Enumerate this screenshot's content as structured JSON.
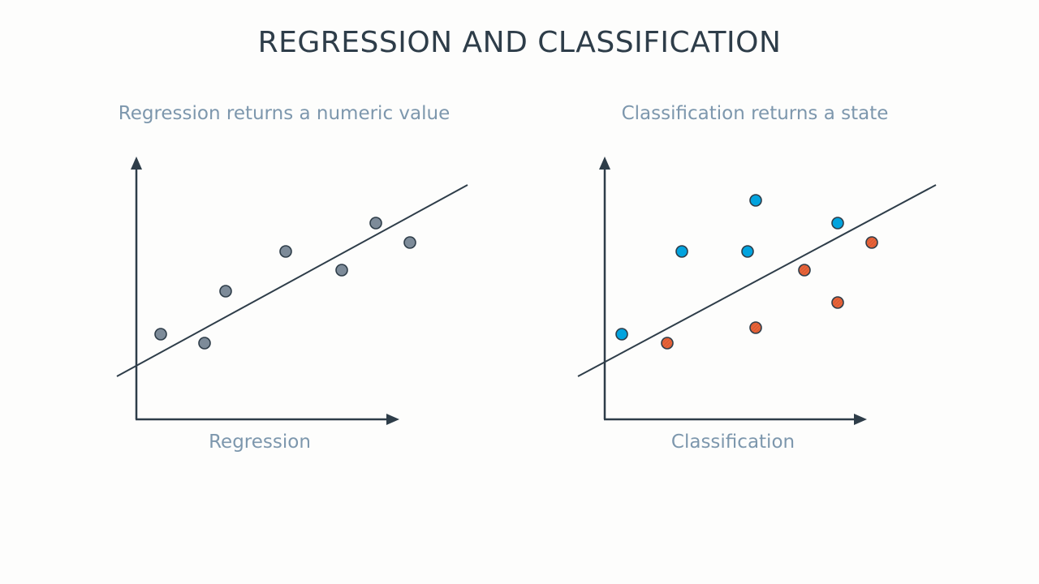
{
  "title": "REGRESSION AND CLASSIFICATION",
  "colors": {
    "ink": "#2e3d49",
    "muted": "#7d97ad",
    "grey_point": "#7d8b99",
    "blue_point": "#02a3de",
    "orange_point": "#e8643a"
  },
  "panels": {
    "regression": {
      "subtitle": "Regression returns a numeric value",
      "xlabel": "Regression"
    },
    "classification": {
      "subtitle": "Classification returns a state",
      "xlabel": "Classification"
    }
  }
}
